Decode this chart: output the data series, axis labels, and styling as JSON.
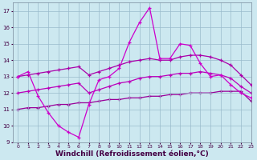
{
  "background_color": "#cce8f0",
  "grid_color": "#99bbcc",
  "line_color_main": "#cc00cc",
  "line_color_reg1": "#990099",
  "line_color_reg2": "#bb00bb",
  "line_color_reg3": "#aa00aa",
  "xlim": [
    -0.5,
    23
  ],
  "ylim": [
    9,
    17.5
  ],
  "xlabel": "Windchill (Refroidissement éolien,°C)",
  "xlabel_fontsize": 6.5,
  "xticks": [
    0,
    1,
    2,
    3,
    4,
    5,
    6,
    7,
    8,
    9,
    10,
    11,
    12,
    13,
    14,
    15,
    16,
    17,
    18,
    19,
    20,
    21,
    22,
    23
  ],
  "yticks": [
    9,
    10,
    11,
    12,
    13,
    14,
    15,
    16,
    17
  ],
  "series_main_x": [
    0,
    1,
    2,
    3,
    4,
    5,
    6,
    7,
    8,
    9,
    10,
    11,
    12,
    13,
    14,
    15,
    16,
    17,
    18,
    19,
    20,
    21,
    22,
    23
  ],
  "series_main_y": [
    13.0,
    13.3,
    11.8,
    10.8,
    10.0,
    9.6,
    9.3,
    11.3,
    12.8,
    13.0,
    13.5,
    15.1,
    16.3,
    17.2,
    14.1,
    14.1,
    15.0,
    14.9,
    13.8,
    13.0,
    13.1,
    12.5,
    12.0,
    11.7
  ],
  "series_reg1_x": [
    0,
    1,
    2,
    3,
    4,
    5,
    6,
    7,
    8,
    9,
    10,
    11,
    12,
    13,
    14,
    15,
    16,
    17,
    18,
    19,
    20,
    21,
    22,
    23
  ],
  "series_reg1_y": [
    11.0,
    11.1,
    11.1,
    11.2,
    11.3,
    11.3,
    11.4,
    11.4,
    11.5,
    11.6,
    11.6,
    11.7,
    11.7,
    11.8,
    11.8,
    11.9,
    11.9,
    12.0,
    12.0,
    12.0,
    12.1,
    12.1,
    12.1,
    11.5
  ],
  "series_reg2_x": [
    0,
    1,
    2,
    3,
    4,
    5,
    6,
    7,
    8,
    9,
    10,
    11,
    12,
    13,
    14,
    15,
    16,
    17,
    18,
    19,
    20,
    21,
    22,
    23
  ],
  "series_reg2_y": [
    12.0,
    12.1,
    12.2,
    12.3,
    12.4,
    12.5,
    12.6,
    12.0,
    12.2,
    12.4,
    12.6,
    12.7,
    12.9,
    13.0,
    13.0,
    13.1,
    13.2,
    13.2,
    13.3,
    13.2,
    13.1,
    12.9,
    12.4,
    12.0
  ],
  "series_reg3_x": [
    0,
    1,
    2,
    3,
    4,
    5,
    6,
    7,
    8,
    9,
    10,
    11,
    12,
    13,
    14,
    15,
    16,
    17,
    18,
    19,
    20,
    21,
    22,
    23
  ],
  "series_reg3_y": [
    13.0,
    13.1,
    13.2,
    13.3,
    13.4,
    13.5,
    13.6,
    13.1,
    13.3,
    13.5,
    13.7,
    13.9,
    14.0,
    14.1,
    14.0,
    14.0,
    14.2,
    14.3,
    14.3,
    14.2,
    14.0,
    13.7,
    13.1,
    12.5
  ]
}
